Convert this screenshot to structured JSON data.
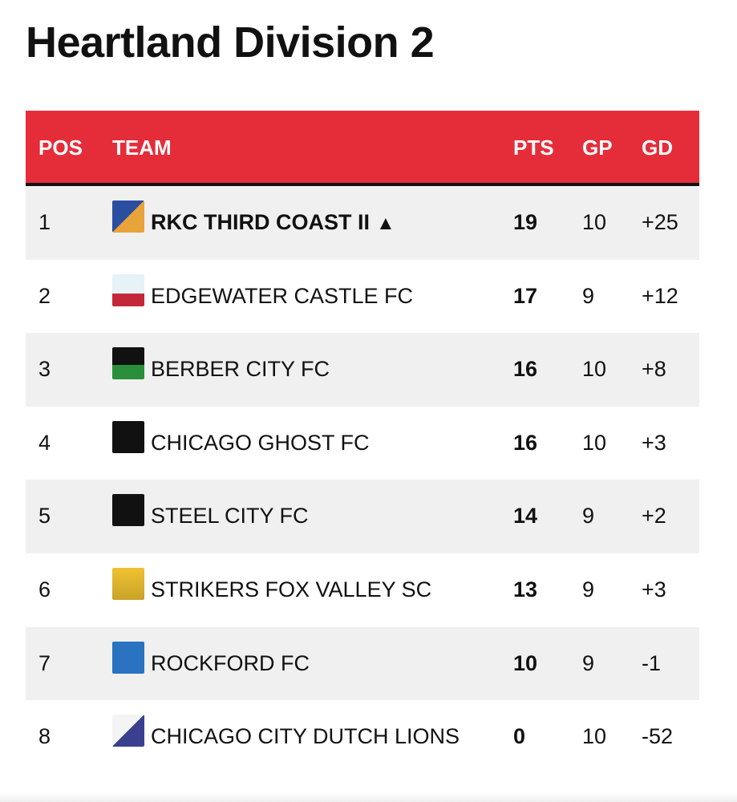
{
  "title": "Heartland Division 2",
  "table": {
    "headers": [
      "POS",
      "TEAM",
      "PTS",
      "GP",
      "GD"
    ],
    "rows": [
      {
        "pos": "1",
        "team": "RKC THIRD COAST II",
        "marker": "▲",
        "pts": "19",
        "gp": "10",
        "gd": "+25"
      },
      {
        "pos": "2",
        "team": "EDGEWATER CASTLE FC",
        "pts": "17",
        "gp": "9",
        "gd": "+12"
      },
      {
        "pos": "3",
        "team": "BERBER CITY FC",
        "pts": "16",
        "gp": "10",
        "gd": "+8"
      },
      {
        "pos": "4",
        "team": "CHICAGO GHOST FC",
        "pts": "16",
        "gp": "10",
        "gd": "+3"
      },
      {
        "pos": "5",
        "team": "STEEL CITY FC",
        "pts": "14",
        "gp": "9",
        "gd": "+2"
      },
      {
        "pos": "6",
        "team": "STRIKERS FOX VALLEY SC",
        "pts": "13",
        "gp": "9",
        "gd": "+3"
      },
      {
        "pos": "7",
        "team": "ROCKFORD FC",
        "pts": "10",
        "gp": "9",
        "gd": "-1"
      },
      {
        "pos": "8",
        "team": "CHICAGO CITY DUTCH LIONS",
        "pts": "0",
        "gp": "10",
        "gd": "-52"
      }
    ]
  }
}
